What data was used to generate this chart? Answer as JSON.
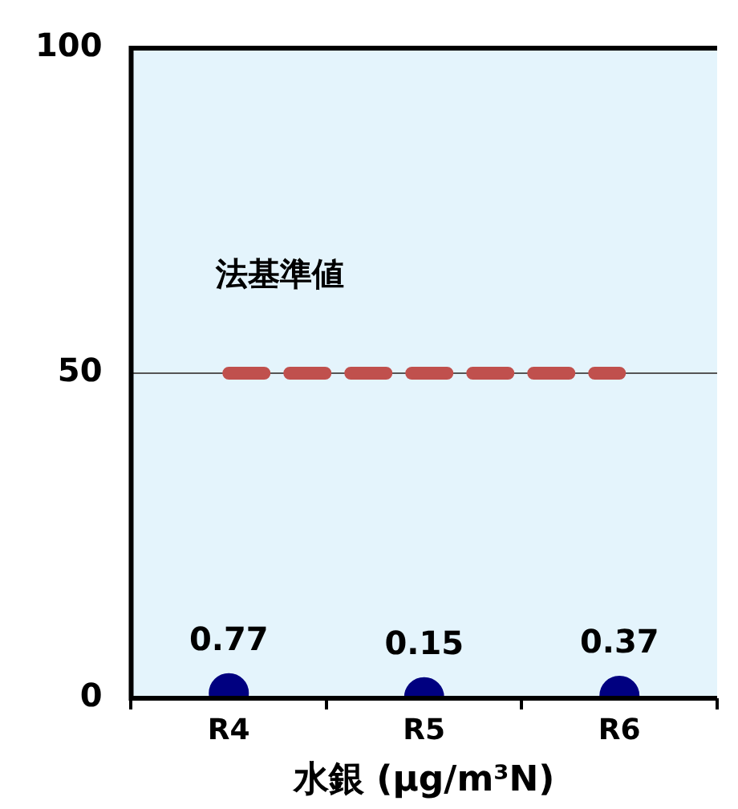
{
  "chart_data": {
    "type": "scatter",
    "xlabel": "水銀 (μg/m³N)",
    "categories": [
      "R4",
      "R5",
      "R6"
    ],
    "series": [
      {
        "color": "#000080",
        "values": [
          0.77,
          0.15,
          0.37
        ]
      }
    ],
    "ylim": [
      0,
      100
    ],
    "yticks": [
      0,
      50,
      100
    ],
    "grid": "y",
    "data_labels": true,
    "marker": "circle",
    "ref_lines": [
      {
        "axis": "y",
        "value": 50,
        "label": "法基準値",
        "color": "#c0504d",
        "line_style": "dashed"
      }
    ]
  }
}
